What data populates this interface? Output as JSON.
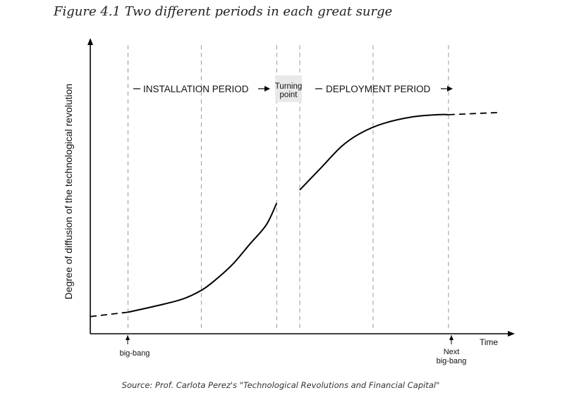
{
  "figure": {
    "title": "Figure 4.1    Two different periods in each great surge",
    "source": "Source: Prof. Carlota Perez's \"Technological Revolutions and Financial Capital\""
  },
  "chart_data": {
    "type": "line",
    "ylabel": "Degree of diffusion of the technological revolution",
    "xlabel": "Time",
    "markers": [
      {
        "label": "big-bang"
      },
      {
        "label_line1": "Next",
        "label_line2": "big-bang"
      }
    ],
    "periods": {
      "installation": "INSTALLATION PERIOD",
      "turning_point_line1": "Turning",
      "turning_point_line2": "point",
      "deployment": "DEPLOYMENT PERIOD"
    },
    "x_range": [
      0,
      100
    ],
    "y_range": [
      0,
      100
    ],
    "guide_x": [
      9,
      26.5,
      44.5,
      50,
      67.5,
      85.5
    ],
    "curve_installation": [
      [
        9,
        6
      ],
      [
        16,
        9
      ],
      [
        22,
        12
      ],
      [
        26.5,
        16
      ],
      [
        30,
        21
      ],
      [
        34,
        28
      ],
      [
        38,
        37
      ],
      [
        42,
        46
      ],
      [
        44.5,
        56
      ]
    ],
    "curve_deployment": [
      [
        50,
        62
      ],
      [
        55,
        72
      ],
      [
        60,
        82
      ],
      [
        64.5,
        88
      ],
      [
        70,
        92.5
      ],
      [
        77,
        95.5
      ],
      [
        83,
        96.5
      ],
      [
        85.5,
        96.5
      ]
    ],
    "dashed_start": [
      [
        0,
        4
      ],
      [
        9,
        6
      ]
    ],
    "dashed_end": [
      [
        85.5,
        96.5
      ],
      [
        97.5,
        97.5
      ]
    ]
  }
}
